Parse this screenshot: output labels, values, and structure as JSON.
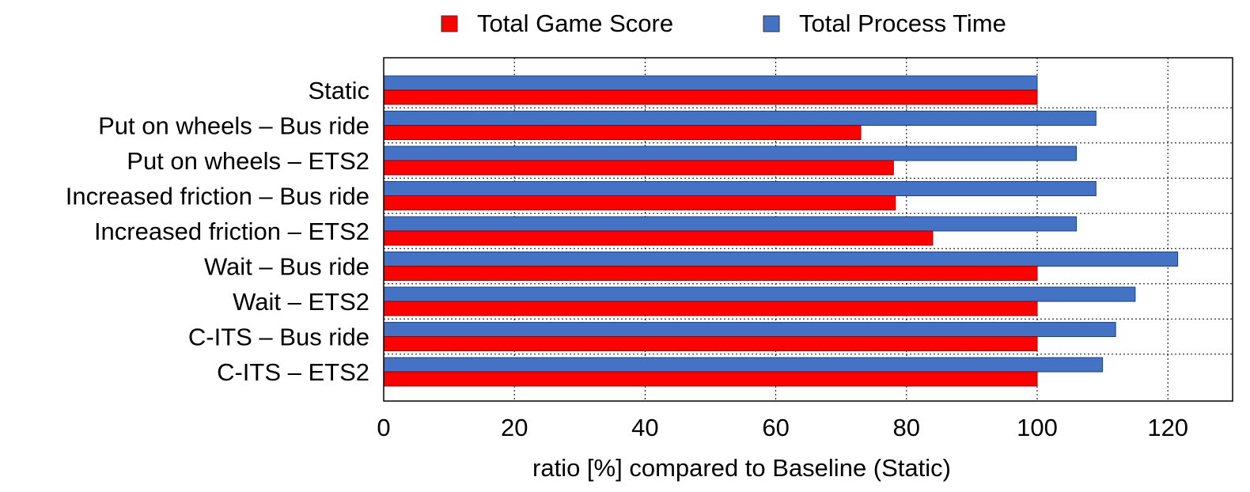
{
  "chart_data": {
    "type": "bar",
    "orientation": "horizontal",
    "categories": [
      "Static",
      "Put on wheels – Bus ride",
      "Put on wheels – ETS2",
      "Increased friction – Bus ride",
      "Increased friction – ETS2",
      "Wait – Bus ride",
      "Wait – ETS2",
      "C-ITS – Bus ride",
      "C-ITS – ETS2"
    ],
    "series": [
      {
        "name": "Total Game Score",
        "color": "#ff0000",
        "values": [
          100,
          73,
          78,
          78.3,
          84,
          100,
          100,
          100,
          100
        ]
      },
      {
        "name": "Total Process Time",
        "color": "#4472c4",
        "values": [
          100,
          109,
          106,
          109,
          106,
          121.5,
          115,
          112,
          110
        ]
      }
    ],
    "xlabel": "ratio [%] compared to Baseline (Static)",
    "ylabel": "",
    "xlim": [
      0,
      130
    ],
    "xticks": [
      0,
      20,
      40,
      60,
      80,
      100,
      120
    ],
    "grid": "vertical dotted",
    "legend": "top-center"
  }
}
